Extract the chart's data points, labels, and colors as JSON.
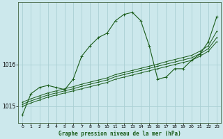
{
  "title": "Graphe pression niveau de la mer (hPa)",
  "bg_color": "#cce8ec",
  "grid_color": "#aacfd4",
  "line_color": "#1a5c1a",
  "xlim": [
    -0.5,
    23.5
  ],
  "ylim": [
    1014.6,
    1017.5
  ],
  "yticks": [
    1015,
    1016
  ],
  "xticks": [
    0,
    1,
    2,
    3,
    4,
    5,
    6,
    7,
    8,
    9,
    10,
    11,
    12,
    13,
    14,
    15,
    16,
    17,
    18,
    19,
    20,
    21,
    22,
    23
  ],
  "curve1": {
    "x": [
      0,
      1,
      2,
      3,
      4,
      5,
      6,
      7,
      8,
      9,
      10,
      11,
      12,
      13,
      14,
      15,
      16,
      17,
      18,
      19,
      20,
      21,
      22,
      23
    ],
    "y": [
      1014.8,
      1015.3,
      1015.45,
      1015.5,
      1015.45,
      1015.4,
      1015.65,
      1016.2,
      1016.45,
      1016.65,
      1016.75,
      1017.05,
      1017.2,
      1017.25,
      1017.05,
      1016.45,
      1015.65,
      1015.7,
      1015.9,
      1015.9,
      1016.1,
      1016.25,
      1016.55,
      1017.15
    ]
  },
  "curve2": {
    "x": [
      0,
      23
    ],
    "y": [
      1015.1,
      1016.8
    ]
  },
  "curve3": {
    "x": [
      0,
      23
    ],
    "y": [
      1015.05,
      1016.65
    ]
  },
  "curve4": {
    "x": [
      0,
      23
    ],
    "y": [
      1015.0,
      1016.55
    ]
  },
  "curve2_full": {
    "x": [
      0,
      1,
      2,
      3,
      4,
      5,
      6,
      7,
      8,
      9,
      10,
      11,
      12,
      13,
      14,
      15,
      16,
      17,
      18,
      19,
      20,
      21,
      22,
      23
    ],
    "y": [
      1015.1,
      1015.18,
      1015.25,
      1015.32,
      1015.37,
      1015.42,
      1015.47,
      1015.53,
      1015.58,
      1015.63,
      1015.68,
      1015.76,
      1015.81,
      1015.86,
      1015.91,
      1015.96,
      1016.01,
      1016.07,
      1016.12,
      1016.17,
      1016.22,
      1016.32,
      1016.45,
      1016.8
    ]
  },
  "curve3_full": {
    "x": [
      0,
      1,
      2,
      3,
      4,
      5,
      6,
      7,
      8,
      9,
      10,
      11,
      12,
      13,
      14,
      15,
      16,
      17,
      18,
      19,
      20,
      21,
      22,
      23
    ],
    "y": [
      1015.05,
      1015.13,
      1015.2,
      1015.27,
      1015.32,
      1015.37,
      1015.42,
      1015.48,
      1015.53,
      1015.58,
      1015.63,
      1015.71,
      1015.76,
      1015.81,
      1015.86,
      1015.91,
      1015.96,
      1016.01,
      1016.06,
      1016.11,
      1016.16,
      1016.26,
      1016.38,
      1016.65
    ]
  },
  "curve4_full": {
    "x": [
      0,
      1,
      2,
      3,
      4,
      5,
      6,
      7,
      8,
      9,
      10,
      11,
      12,
      13,
      14,
      15,
      16,
      17,
      18,
      19,
      20,
      21,
      22,
      23
    ],
    "y": [
      1015.0,
      1015.08,
      1015.15,
      1015.22,
      1015.27,
      1015.32,
      1015.37,
      1015.42,
      1015.47,
      1015.52,
      1015.57,
      1015.65,
      1015.7,
      1015.75,
      1015.8,
      1015.85,
      1015.9,
      1015.95,
      1016.0,
      1016.05,
      1016.1,
      1016.2,
      1016.32,
      1016.55
    ]
  }
}
